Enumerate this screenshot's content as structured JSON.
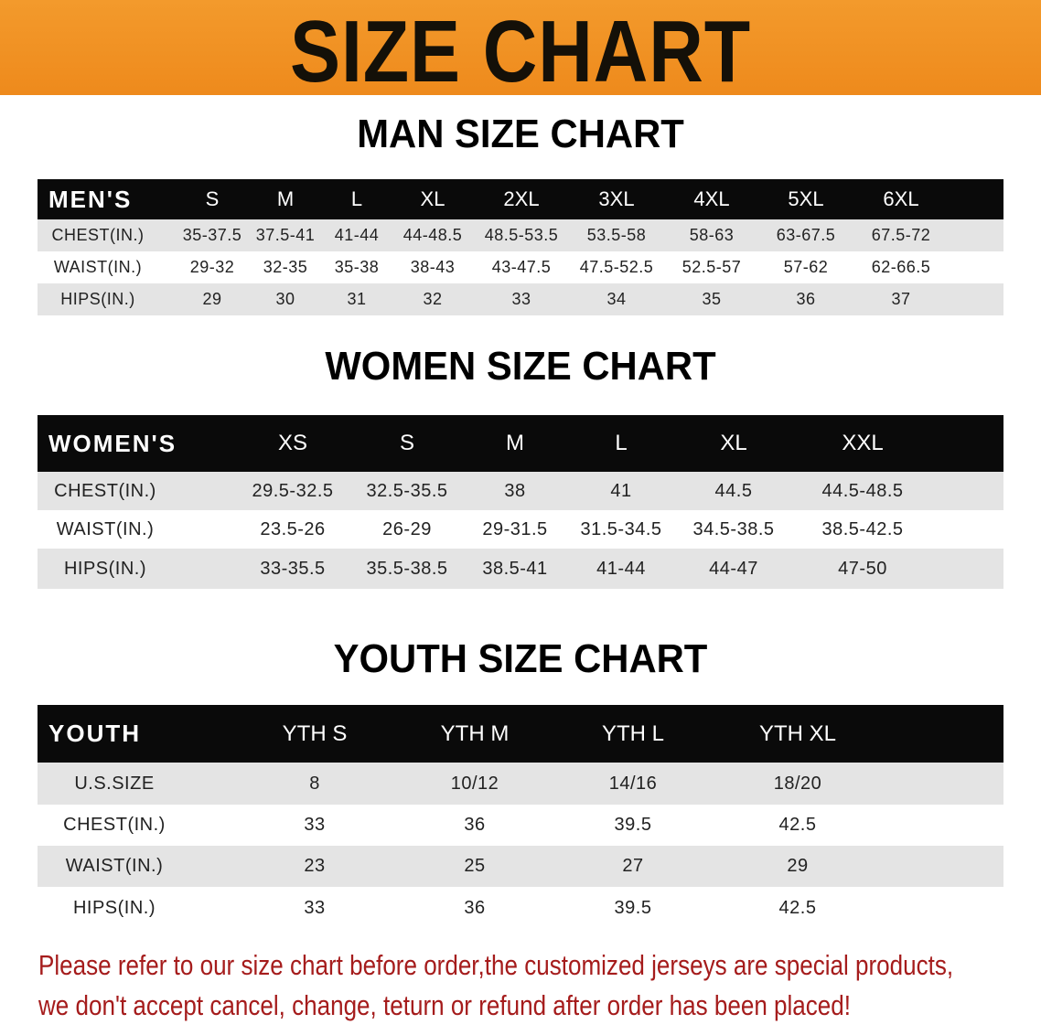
{
  "banner": {
    "title": "SIZE CHART",
    "color": "#f08c20"
  },
  "men": {
    "title": "MAN SIZE CHART",
    "headers": [
      "MEN'S",
      "S",
      "M",
      "L",
      "XL",
      "2XL",
      "3XL",
      "4XL",
      "5XL",
      "6XL"
    ],
    "rows": [
      [
        "CHEST(IN.)",
        "35-37.5",
        "37.5-41",
        "41-44",
        "44-48.5",
        "48.5-53.5",
        "53.5-58",
        "58-63",
        "63-67.5",
        "67.5-72"
      ],
      [
        "WAIST(IN.)",
        "29-32",
        "32-35",
        "35-38",
        "38-43",
        "43-47.5",
        "47.5-52.5",
        "52.5-57",
        "57-62",
        "62-66.5"
      ],
      [
        "HIPS(IN.)",
        "29",
        "30",
        "31",
        "32",
        "33",
        "34",
        "35",
        "36",
        "37"
      ]
    ]
  },
  "women": {
    "title": "WOMEN SIZE CHART",
    "headers": [
      "WOMEN'S",
      "XS",
      "S",
      "M",
      "L",
      "XL",
      "XXL"
    ],
    "rows": [
      [
        "CHEST(IN.)",
        "29.5-32.5",
        "32.5-35.5",
        "38",
        "41",
        "44.5",
        "44.5-48.5"
      ],
      [
        "WAIST(IN.)",
        "23.5-26",
        "26-29",
        "29-31.5",
        "31.5-34.5",
        "34.5-38.5",
        "38.5-42.5"
      ],
      [
        "HIPS(IN.)",
        "33-35.5",
        "35.5-38.5",
        "38.5-41",
        "41-44",
        "44-47",
        "47-50"
      ]
    ]
  },
  "youth": {
    "title": "YOUTH SIZE CHART",
    "headers": [
      "YOUTH",
      "YTH S",
      "YTH M",
      "YTH L",
      "YTH XL"
    ],
    "rows": [
      [
        "U.S.SIZE",
        "8",
        "10/12",
        "14/16",
        "18/20"
      ],
      [
        "CHEST(IN.)",
        "33",
        "36",
        "39.5",
        "42.5"
      ],
      [
        "WAIST(IN.)",
        "23",
        "25",
        "27",
        "29"
      ],
      [
        "HIPS(IN.)",
        "33",
        "36",
        "39.5",
        "42.5"
      ]
    ]
  },
  "notice": {
    "line1": "Please refer to our size chart before order,the customized jerseys are special products,",
    "line2": "we don't accept cancel, change, teturn or refund after order has been placed!",
    "color": "#a51c1c"
  }
}
